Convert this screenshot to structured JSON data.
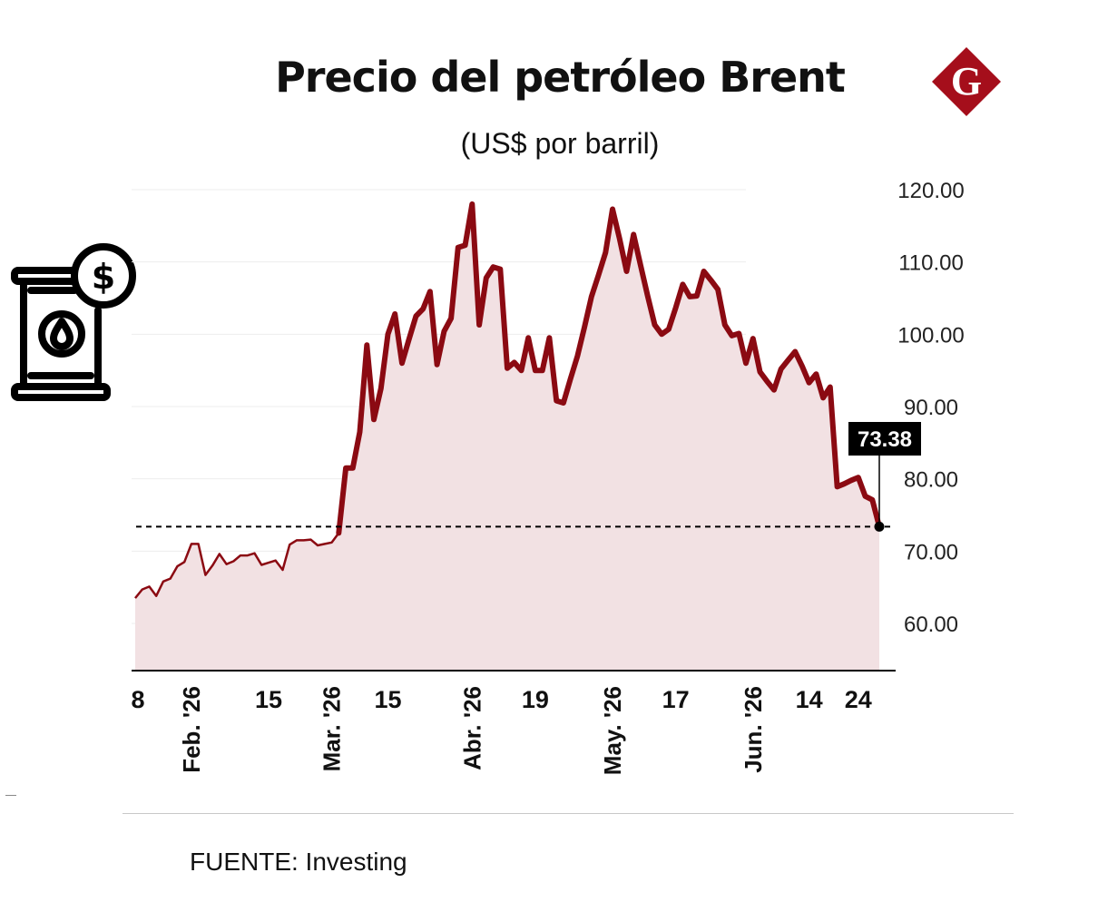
{
  "header": {
    "title": "Precio del petróleo Brent",
    "subtitle": "(US$ por barril)",
    "logo_letter": "G"
  },
  "icons": {
    "illustration": "oil-barrel-dollar-icon",
    "logo": "gestion-logo-icon"
  },
  "colors": {
    "line": "#8b0a12",
    "fill": "#f2e1e3",
    "logo": "#a50e1b",
    "callout_bg": "#000000"
  },
  "footer": {
    "source": "FUENTE: Investing"
  },
  "chart_data": {
    "type": "area",
    "title": "Precio del petróleo Brent",
    "subtitle": "(US$ por barril)",
    "xlabel": "",
    "ylabel": "",
    "ylim": [
      53.5,
      120
    ],
    "y_ticks": [
      "120.00",
      "110.00",
      "100.00",
      "90.00",
      "80.00",
      "70.00",
      "60.00"
    ],
    "y_axis_side": "right",
    "grid": true,
    "x_tick_labels": [
      "8",
      "Feb. '26",
      "15",
      "Mar. '26",
      "15",
      "Abr. '26",
      "19",
      "May. '26",
      "17",
      "Jun. '26",
      "14",
      "24"
    ],
    "x_tick_index": [
      0,
      8,
      19,
      28,
      36,
      48,
      57,
      68,
      77,
      88,
      96,
      103
    ],
    "last_value_label": "73.38",
    "reference_line": 73.38,
    "series": [
      {
        "values": [
          63.5,
          64.7,
          65.1,
          63.8,
          65.8,
          66.2,
          67.9,
          68.5,
          71.0,
          71.0,
          66.7,
          68.0,
          69.6,
          68.2,
          68.6,
          69.4,
          69.4,
          69.7,
          68.1,
          68.4,
          68.7,
          67.4,
          70.9,
          71.5,
          71.5,
          71.6,
          70.8,
          71.0,
          71.2,
          72.5,
          81.5,
          81.5,
          86.5,
          98.5,
          88.2,
          92.5,
          100.0,
          102.8,
          96.0,
          99.3,
          102.5,
          103.5,
          105.9,
          95.8,
          100.4,
          102.2,
          112.0,
          112.3,
          118.0,
          101.3,
          107.8,
          109.3,
          109.0,
          95.3,
          96.1,
          95.0,
          99.5,
          95.0,
          95.0,
          99.5,
          90.8,
          90.5,
          93.8,
          97.0,
          101.0,
          105.2,
          108.2,
          111.3,
          117.3,
          113.2,
          108.7,
          113.8,
          109.5,
          105.3,
          101.3,
          100.0,
          100.7,
          103.7,
          106.9,
          105.2,
          105.3,
          108.7,
          107.5,
          106.2,
          101.3,
          99.8,
          100.1,
          96.0,
          99.4,
          94.8,
          93.5,
          92.3,
          95.2,
          96.4,
          97.6,
          95.6,
          93.3,
          94.5,
          91.2,
          92.7,
          78.9,
          79.3,
          79.8,
          80.2,
          77.6,
          77.1,
          73.38
        ],
        "line_widths_px": {
          "before_index_29": 2.5,
          "from_index_29": 6
        }
      }
    ]
  }
}
